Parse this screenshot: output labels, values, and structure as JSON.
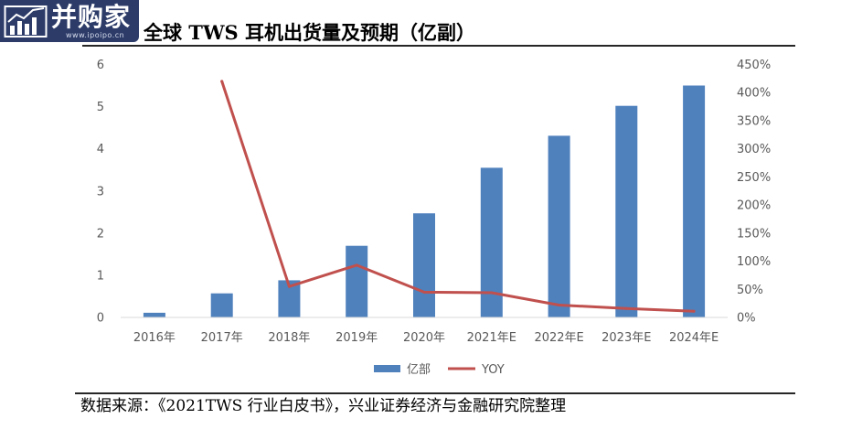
{
  "watermark": {
    "brand": "并购家",
    "site": "www.ipoipo.cn",
    "background": "#2c3b68",
    "icon": "bar-chart-trend-icon"
  },
  "chart_data": {
    "type": "bar",
    "title": "全球 TWS 耳机出货量及预期（亿副）",
    "categories": [
      "2016年",
      "2017年",
      "2018年",
      "2019年",
      "2020年",
      "2021年E",
      "2022年E",
      "2023年E",
      "2024年E"
    ],
    "series": [
      {
        "name": "亿部",
        "type": "bar",
        "axis": "left",
        "color": "#4f81bd",
        "values": [
          0.11,
          0.57,
          0.88,
          1.7,
          2.47,
          3.55,
          4.31,
          5.02,
          5.5
        ]
      },
      {
        "name": "YOY",
        "type": "line",
        "axis": "right",
        "color": "#c0504d",
        "values": [
          null,
          420,
          55,
          93,
          45,
          44,
          22,
          16,
          11
        ]
      }
    ],
    "y_left": {
      "min": 0,
      "max": 6,
      "ticks": [
        "0",
        "1",
        "2",
        "3",
        "4",
        "5",
        "6"
      ]
    },
    "y_right": {
      "min": 0,
      "max": 450,
      "ticks": [
        "0%",
        "50%",
        "100%",
        "150%",
        "200%",
        "250%",
        "300%",
        "350%",
        "400%",
        "450%"
      ]
    },
    "grid": false,
    "legend": "bottom"
  },
  "source": "数据来源：《2021TWS 行业白皮书》，兴业证券经济与金融研究院整理"
}
